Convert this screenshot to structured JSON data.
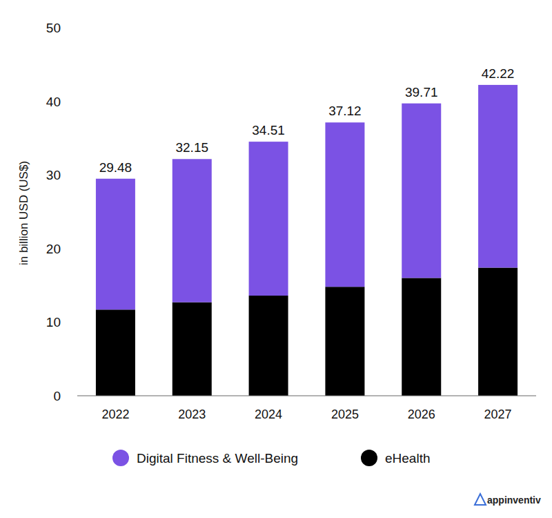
{
  "chart_data": {
    "type": "bar",
    "stacked": true,
    "y_label": "in billion USD (US$)",
    "categories": [
      "2022",
      "2023",
      "2024",
      "2025",
      "2026",
      "2027"
    ],
    "series": [
      {
        "name": "Digital Fitness & Well-Being",
        "color": "#7b52e4",
        "values": [
          17.78,
          19.45,
          20.91,
          22.32,
          23.71,
          24.82
        ]
      },
      {
        "name": "eHealth",
        "color": "#000000",
        "values": [
          11.7,
          12.7,
          13.6,
          14.8,
          16.0,
          17.4
        ]
      }
    ],
    "totals": [
      29.48,
      32.15,
      34.51,
      37.12,
      39.71,
      42.22
    ],
    "ylim": [
      0,
      50
    ],
    "yticks": [
      0,
      10,
      20,
      30,
      40,
      50
    ],
    "grid": false,
    "legend": "bottom",
    "watermark": "appinventiv"
  }
}
